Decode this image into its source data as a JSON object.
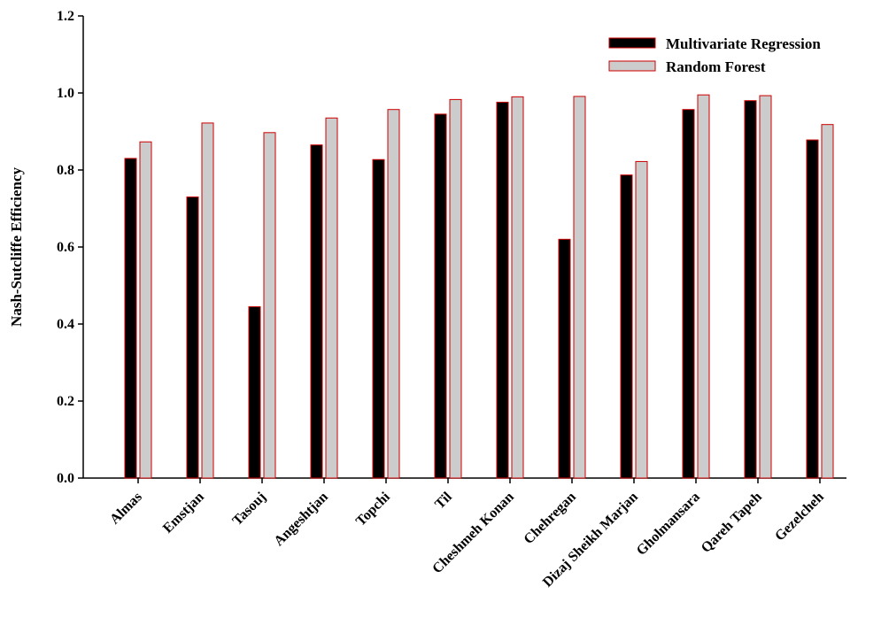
{
  "chart_data": {
    "type": "bar",
    "categories": [
      "Almas",
      "Emstjan",
      "Tasouj",
      "Angeshtjan",
      "Topchi",
      "Til",
      "Cheshmeh Konan",
      "Chehregan",
      "Dizaj Sheikh Marjan",
      "Gholmansara",
      "Qareh Tapeh",
      "Gezelcheh"
    ],
    "series": [
      {
        "name": "Multivariate Regression",
        "color": "#000000",
        "stroke": "#cc0000",
        "values": [
          0.83,
          0.73,
          0.445,
          0.865,
          0.827,
          0.945,
          0.976,
          0.62,
          0.787,
          0.957,
          0.98,
          0.878
        ]
      },
      {
        "name": "Random Forest",
        "color": "#cccccc",
        "stroke": "#cc0000",
        "values": [
          0.873,
          0.922,
          0.897,
          0.935,
          0.957,
          0.983,
          0.99,
          0.991,
          0.822,
          0.995,
          0.993,
          0.918
        ]
      }
    ],
    "title": "",
    "xlabel": "",
    "ylabel": "Nash-Sutcliffe Efficiency",
    "ylim": [
      0,
      1.2
    ],
    "yticks": [
      "0.0",
      "0.2",
      "0.4",
      "0.6",
      "0.8",
      "1.0",
      "1.2"
    ],
    "grid": false,
    "legend_position": "top-right"
  }
}
